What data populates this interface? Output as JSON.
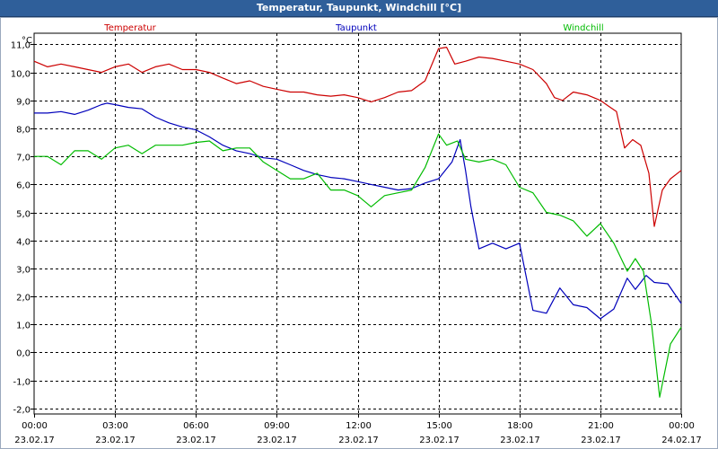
{
  "window": {
    "title": "Temperatur, Taupunkt, Windchill [°C]"
  },
  "chart_data": {
    "type": "line",
    "title": "Temperatur, Taupunkt, Windchill [°C]",
    "ylabel": "°C",
    "ylim": [
      -2.2,
      11.4
    ],
    "y_ticks": [
      11.0,
      10.0,
      9.0,
      8.0,
      7.0,
      6.0,
      5.0,
      4.0,
      3.0,
      2.0,
      1.0,
      0.0,
      -1.0,
      -2.0
    ],
    "y_tick_labels": [
      "11,0",
      "10,0",
      "9,0",
      "8,0",
      "7,0",
      "6,0",
      "5,0",
      "4,0",
      "3,0",
      "2,0",
      "1,0",
      "0,0",
      "-1,0",
      "-2,0"
    ],
    "xlim": [
      0,
      24
    ],
    "x_ticks": [
      0,
      3,
      6,
      9,
      12,
      15,
      18,
      21,
      24
    ],
    "x_tick_times": [
      "00:00",
      "03:00",
      "06:00",
      "09:00",
      "12:00",
      "15:00",
      "18:00",
      "21:00",
      "00:00"
    ],
    "x_tick_dates": [
      "23.02.17",
      "23.02.17",
      "23.02.17",
      "23.02.17",
      "23.02.17",
      "23.02.17",
      "23.02.17",
      "23.02.17",
      "24.02.17"
    ],
    "grid": true,
    "legend_position": "top",
    "series": [
      {
        "name": "Temperatur",
        "color": "#cc0000",
        "points": [
          [
            0,
            10.4
          ],
          [
            0.5,
            10.2
          ],
          [
            1.0,
            10.3
          ],
          [
            1.5,
            10.2
          ],
          [
            2.0,
            10.1
          ],
          [
            2.5,
            10.0
          ],
          [
            3.0,
            10.2
          ],
          [
            3.5,
            10.3
          ],
          [
            4.0,
            10.0
          ],
          [
            4.5,
            10.2
          ],
          [
            5.0,
            10.3
          ],
          [
            5.5,
            10.1
          ],
          [
            6.0,
            10.1
          ],
          [
            6.5,
            10.0
          ],
          [
            7.0,
            9.8
          ],
          [
            7.5,
            9.6
          ],
          [
            8.0,
            9.7
          ],
          [
            8.5,
            9.5
          ],
          [
            9.0,
            9.4
          ],
          [
            9.5,
            9.3
          ],
          [
            10.0,
            9.3
          ],
          [
            10.5,
            9.2
          ],
          [
            11.0,
            9.15
          ],
          [
            11.5,
            9.2
          ],
          [
            12.0,
            9.1
          ],
          [
            12.5,
            8.95
          ],
          [
            13.0,
            9.1
          ],
          [
            13.5,
            9.3
          ],
          [
            14.0,
            9.35
          ],
          [
            14.5,
            9.7
          ],
          [
            15.0,
            10.85
          ],
          [
            15.3,
            10.9
          ],
          [
            15.6,
            10.3
          ],
          [
            16.0,
            10.4
          ],
          [
            16.5,
            10.55
          ],
          [
            17.0,
            10.5
          ],
          [
            17.5,
            10.4
          ],
          [
            18.0,
            10.3
          ],
          [
            18.5,
            10.1
          ],
          [
            19.0,
            9.6
          ],
          [
            19.3,
            9.1
          ],
          [
            19.6,
            9.0
          ],
          [
            20.0,
            9.3
          ],
          [
            20.5,
            9.2
          ],
          [
            21.0,
            9.0
          ],
          [
            21.3,
            8.8
          ],
          [
            21.6,
            8.6
          ],
          [
            21.9,
            7.3
          ],
          [
            22.2,
            7.6
          ],
          [
            22.5,
            7.4
          ],
          [
            22.8,
            6.4
          ],
          [
            23.0,
            4.5
          ],
          [
            23.3,
            5.8
          ],
          [
            23.6,
            6.2
          ],
          [
            24.0,
            6.5
          ]
        ]
      },
      {
        "name": "Taupunkt",
        "color": "#0000bb",
        "points": [
          [
            0,
            8.55
          ],
          [
            0.5,
            8.55
          ],
          [
            1.0,
            8.6
          ],
          [
            1.5,
            8.5
          ],
          [
            2.0,
            8.65
          ],
          [
            2.5,
            8.85
          ],
          [
            2.7,
            8.9
          ],
          [
            3.0,
            8.85
          ],
          [
            3.5,
            8.75
          ],
          [
            4.0,
            8.7
          ],
          [
            4.5,
            8.4
          ],
          [
            5.0,
            8.2
          ],
          [
            5.5,
            8.05
          ],
          [
            6.0,
            7.95
          ],
          [
            6.5,
            7.7
          ],
          [
            7.0,
            7.4
          ],
          [
            7.5,
            7.2
          ],
          [
            8.0,
            7.1
          ],
          [
            8.5,
            6.95
          ],
          [
            9.0,
            6.9
          ],
          [
            9.5,
            6.7
          ],
          [
            10.0,
            6.5
          ],
          [
            10.5,
            6.35
          ],
          [
            11.0,
            6.25
          ],
          [
            11.5,
            6.2
          ],
          [
            12.0,
            6.1
          ],
          [
            12.5,
            6.0
          ],
          [
            13.0,
            5.9
          ],
          [
            13.5,
            5.8
          ],
          [
            14.0,
            5.85
          ],
          [
            14.5,
            6.05
          ],
          [
            15.0,
            6.2
          ],
          [
            15.5,
            6.8
          ],
          [
            15.8,
            7.6
          ],
          [
            16.0,
            6.5
          ],
          [
            16.2,
            5.2
          ],
          [
            16.5,
            3.7
          ],
          [
            17.0,
            3.9
          ],
          [
            17.5,
            3.7
          ],
          [
            18.0,
            3.9
          ],
          [
            18.5,
            1.5
          ],
          [
            19.0,
            1.4
          ],
          [
            19.5,
            2.3
          ],
          [
            20.0,
            1.7
          ],
          [
            20.5,
            1.6
          ],
          [
            21.0,
            1.2
          ],
          [
            21.5,
            1.55
          ],
          [
            22.0,
            2.65
          ],
          [
            22.3,
            2.25
          ],
          [
            22.7,
            2.75
          ],
          [
            23.0,
            2.5
          ],
          [
            23.5,
            2.45
          ],
          [
            24.0,
            1.75
          ]
        ]
      },
      {
        "name": "Windchill",
        "color": "#00bb00",
        "points": [
          [
            0,
            7.0
          ],
          [
            0.5,
            7.0
          ],
          [
            1.0,
            6.7
          ],
          [
            1.5,
            7.2
          ],
          [
            2.0,
            7.2
          ],
          [
            2.5,
            6.9
          ],
          [
            3.0,
            7.3
          ],
          [
            3.5,
            7.4
          ],
          [
            4.0,
            7.1
          ],
          [
            4.5,
            7.4
          ],
          [
            5.0,
            7.4
          ],
          [
            5.5,
            7.4
          ],
          [
            6.0,
            7.5
          ],
          [
            6.5,
            7.55
          ],
          [
            7.0,
            7.2
          ],
          [
            7.5,
            7.3
          ],
          [
            8.0,
            7.3
          ],
          [
            8.5,
            6.8
          ],
          [
            9.0,
            6.5
          ],
          [
            9.5,
            6.2
          ],
          [
            10.0,
            6.2
          ],
          [
            10.5,
            6.4
          ],
          [
            11.0,
            5.8
          ],
          [
            11.5,
            5.8
          ],
          [
            12.0,
            5.6
          ],
          [
            12.5,
            5.2
          ],
          [
            13.0,
            5.6
          ],
          [
            13.5,
            5.7
          ],
          [
            14.0,
            5.8
          ],
          [
            14.5,
            6.6
          ],
          [
            15.0,
            7.8
          ],
          [
            15.3,
            7.4
          ],
          [
            15.7,
            7.55
          ],
          [
            16.0,
            6.9
          ],
          [
            16.5,
            6.8
          ],
          [
            17.0,
            6.9
          ],
          [
            17.5,
            6.7
          ],
          [
            18.0,
            5.9
          ],
          [
            18.5,
            5.7
          ],
          [
            19.0,
            5.0
          ],
          [
            19.5,
            4.9
          ],
          [
            20.0,
            4.7
          ],
          [
            20.5,
            4.15
          ],
          [
            21.0,
            4.6
          ],
          [
            21.5,
            3.9
          ],
          [
            22.0,
            2.9
          ],
          [
            22.3,
            3.35
          ],
          [
            22.6,
            2.9
          ],
          [
            22.9,
            1.0
          ],
          [
            23.2,
            -1.6
          ],
          [
            23.6,
            0.3
          ],
          [
            24.0,
            0.9
          ]
        ]
      }
    ]
  }
}
